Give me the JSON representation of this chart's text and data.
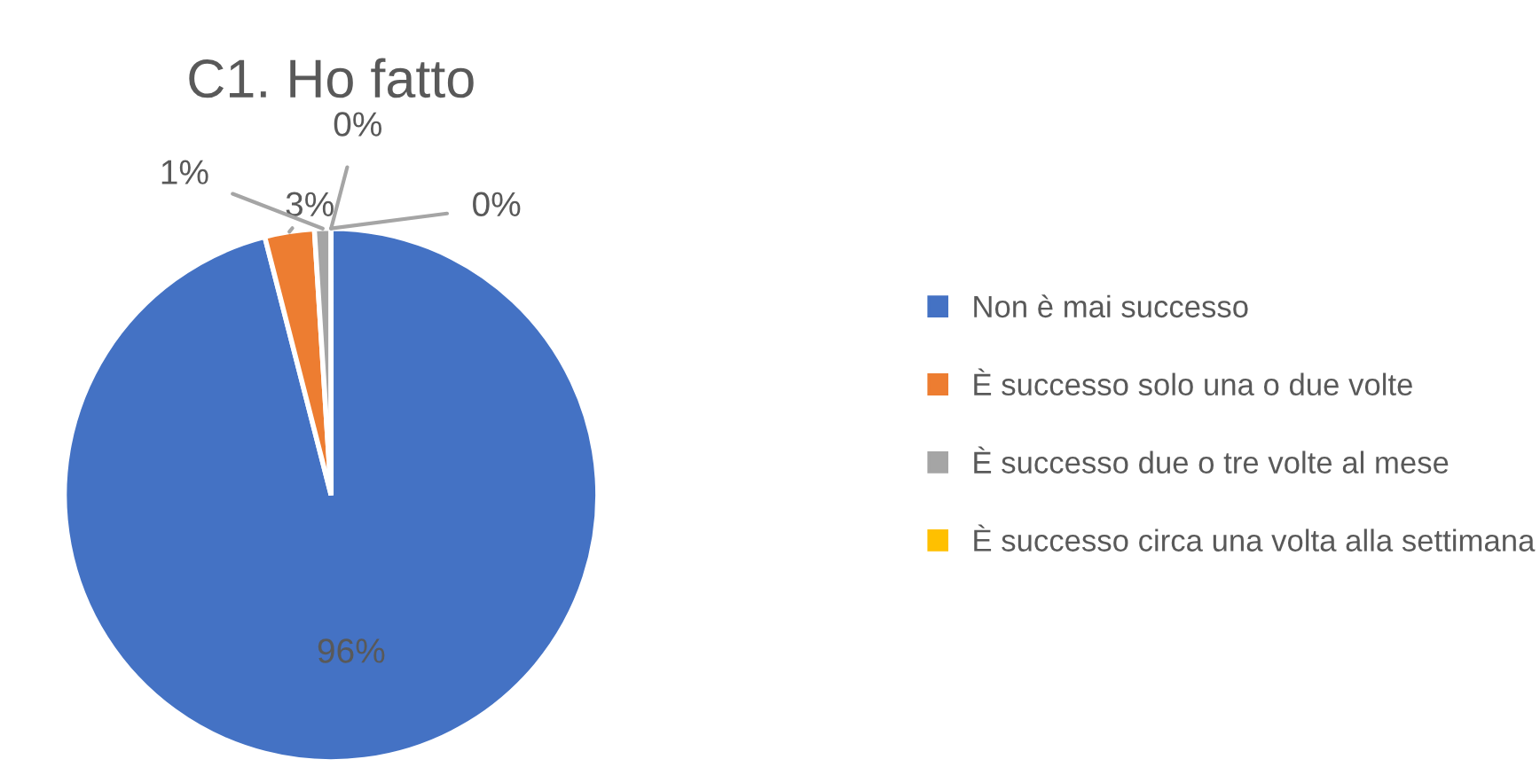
{
  "chart_data": {
    "type": "pie",
    "title": "C1. Ho fatto",
    "categories": [
      "Non è mai successo",
      "È successo solo una o due volte",
      "È successo due o tre volte al mese",
      "È successo circa una volta alla settimana",
      null
    ],
    "values": [
      96,
      3,
      1,
      0,
      0
    ],
    "colors": [
      "#4472c4",
      "#ed7d31",
      "#a5a5a5",
      "#ffc000",
      "#5b9bd5"
    ],
    "value_labels": [
      "96%",
      "3%",
      "1%",
      "0%",
      "0%"
    ],
    "legend": "right"
  }
}
